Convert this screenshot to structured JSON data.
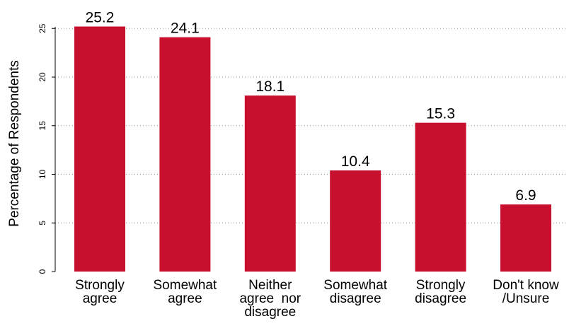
{
  "chart_data": {
    "type": "bar",
    "categories": [
      [
        "Strongly",
        "agree"
      ],
      [
        "Somewhat",
        "agree"
      ],
      [
        "Neither",
        "agree  nor",
        "disagree"
      ],
      [
        "Somewhat",
        "disagree"
      ],
      [
        "Strongly",
        "disagree"
      ],
      [
        "Don't know",
        "/Unsure"
      ]
    ],
    "values": [
      25.2,
      24.1,
      18.1,
      10.4,
      15.3,
      6.9
    ],
    "value_labels": [
      "25.2",
      "24.1",
      "18.1",
      "10.4",
      "15.3",
      "6.9"
    ],
    "ylabel": "Percentage of Respondents",
    "yticks": [
      0,
      5,
      10,
      15,
      20,
      25
    ],
    "ylim": [
      0,
      25.2
    ],
    "grid": "horizontal dotted",
    "bar_color": "#c8102e"
  }
}
